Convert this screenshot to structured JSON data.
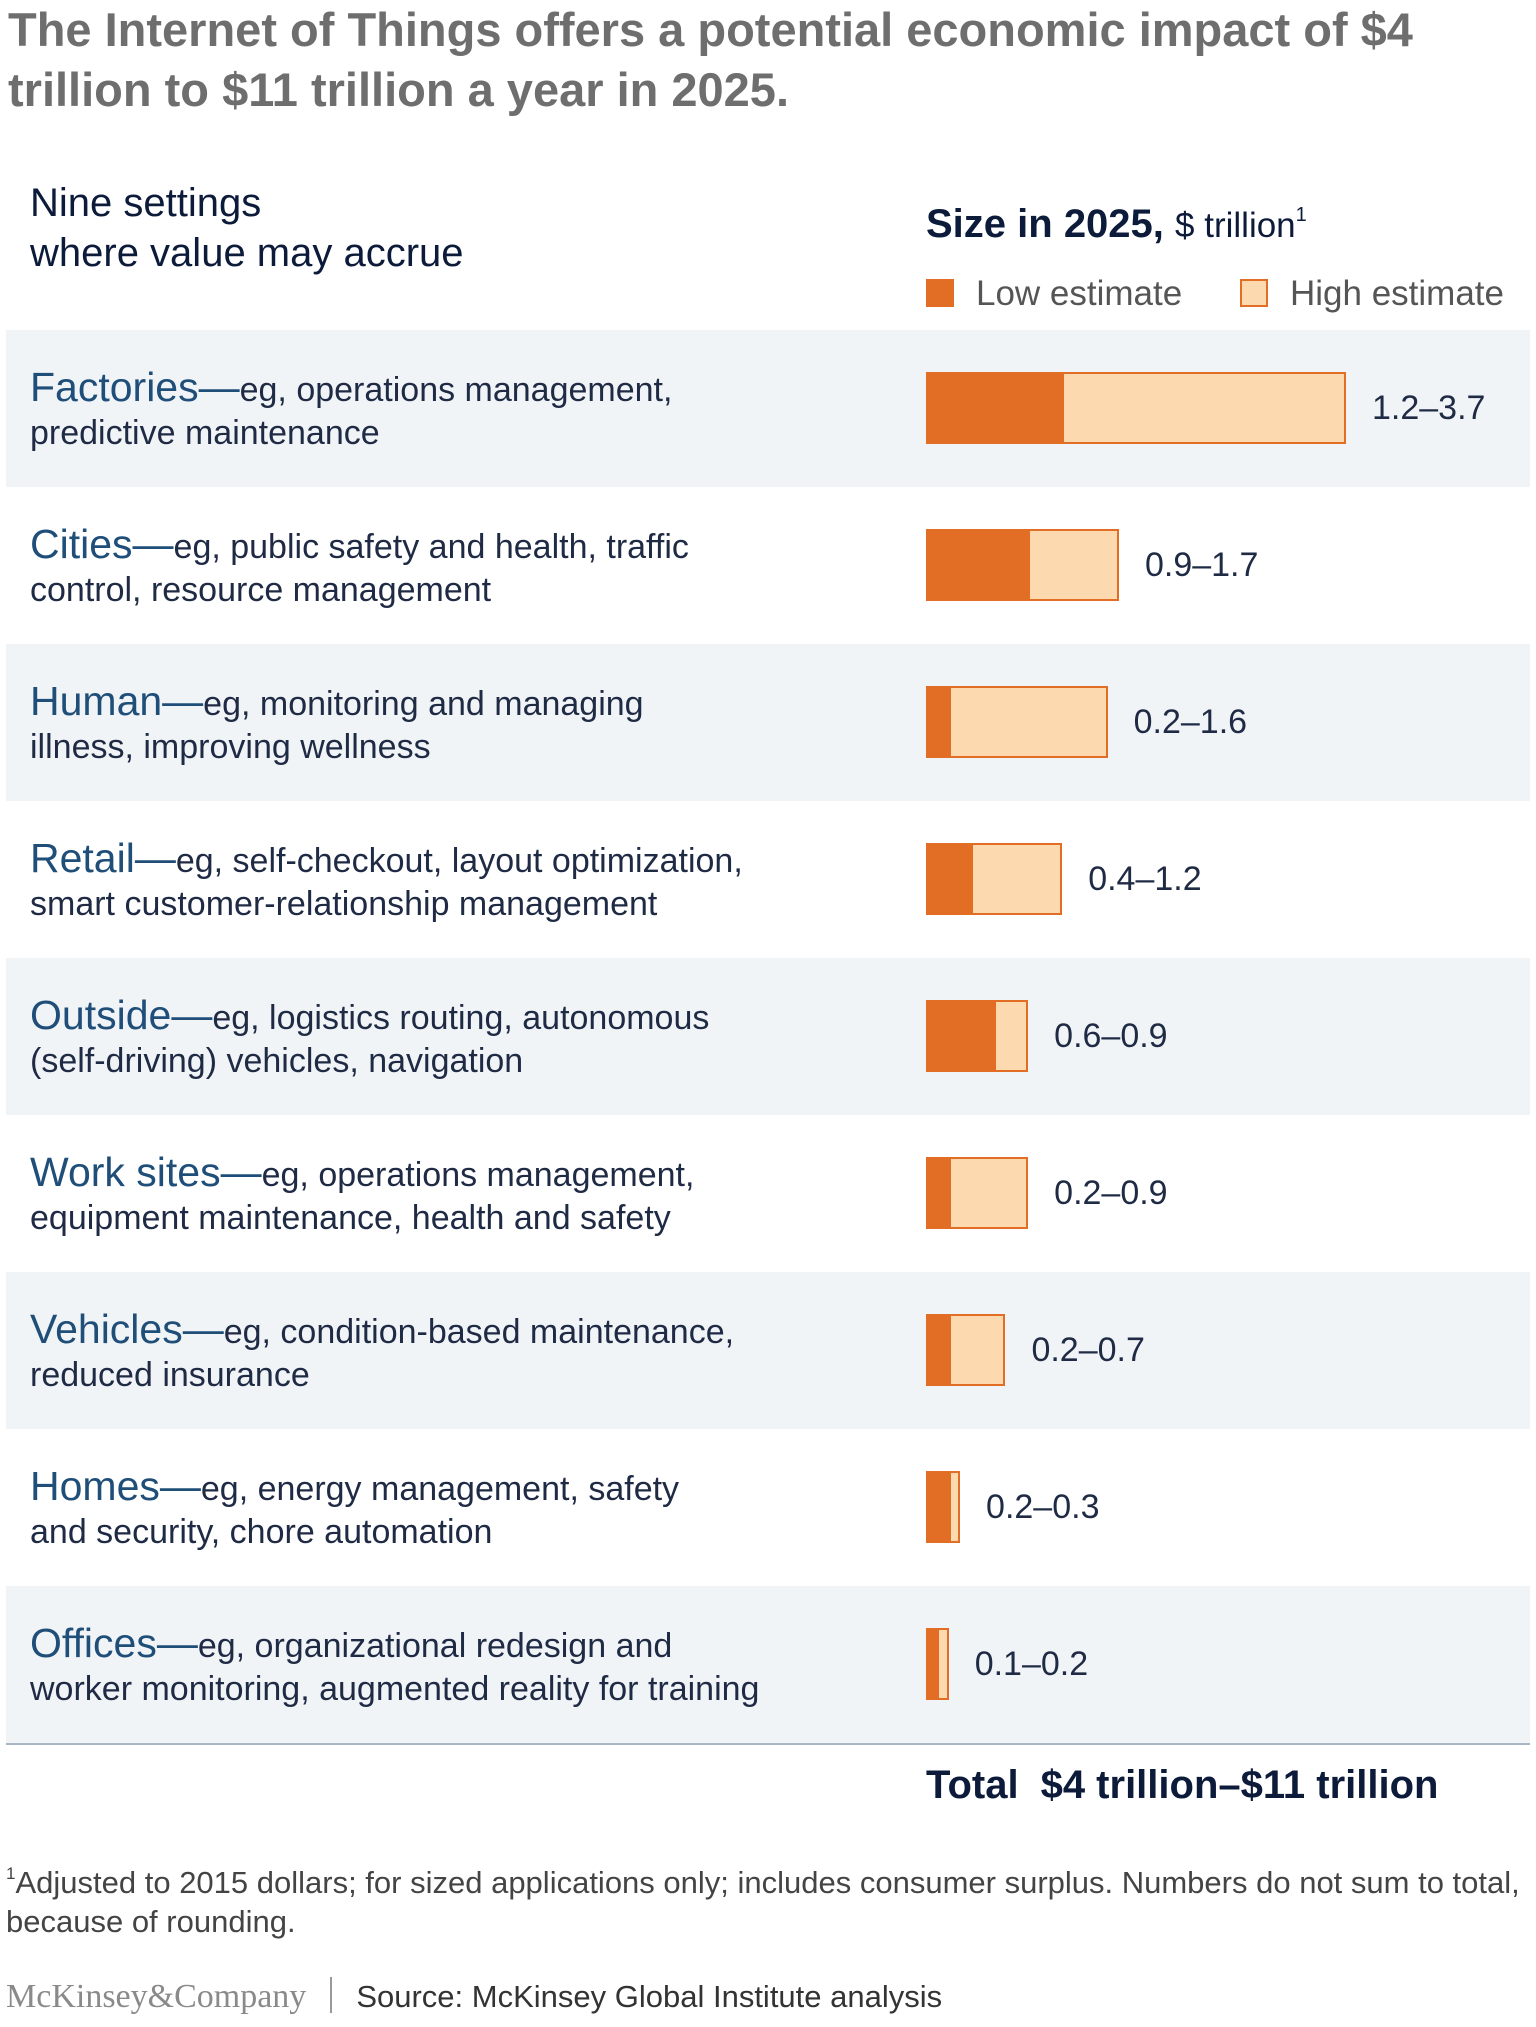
{
  "title": "The Internet of Things offers a potential economic impact of $4 trillion to $11 trillion a year in 2025.",
  "settings_header": {
    "line1": "Nine settings",
    "line2": "where value may accrue"
  },
  "size_header": {
    "strong": "Size in 2025,",
    "unit": "$ trillion",
    "footnote_marker": "1"
  },
  "legend": {
    "low_label": "Low estimate",
    "high_label": "High estimate"
  },
  "colors": {
    "low": "#e26e25",
    "high": "#fdd9b0",
    "shade": "#f1f4f7",
    "setting_text": "#1f4e79"
  },
  "chart_data": {
    "type": "bar",
    "orientation": "horizontal",
    "categories": [
      "Factories",
      "Cities",
      "Human",
      "Retail",
      "Outside",
      "Work sites",
      "Vehicles",
      "Homes",
      "Offices"
    ],
    "series": [
      {
        "name": "Low estimate",
        "values": [
          1.2,
          0.9,
          0.2,
          0.4,
          0.6,
          0.2,
          0.2,
          0.2,
          0.1
        ]
      },
      {
        "name": "High estimate",
        "values": [
          3.7,
          1.7,
          1.6,
          1.2,
          0.9,
          0.9,
          0.7,
          0.3,
          0.2
        ]
      }
    ],
    "xlim": [
      0,
      3.7
    ],
    "grid": false,
    "legend_position": "top-right"
  },
  "rows": [
    {
      "setting": "Factories",
      "dash": "—",
      "desc_line1": "eg, operations management,",
      "desc_line2": "predictive maintenance",
      "value_label": "1.2–3.7"
    },
    {
      "setting": "Cities",
      "dash": "—",
      "desc_line1": "eg, public safety and health, traffic",
      "desc_line2": "control, resource management",
      "value_label": "0.9–1.7"
    },
    {
      "setting": "Human",
      "dash": "—",
      "desc_line1": "eg, monitoring and managing",
      "desc_line2": "illness, improving wellness",
      "value_label": "0.2–1.6"
    },
    {
      "setting": "Retail",
      "dash": "—",
      "desc_line1": "eg, self-checkout, layout optimization,",
      "desc_line2": "smart customer-relationship management",
      "value_label": "0.4–1.2"
    },
    {
      "setting": "Outside",
      "dash": "—",
      "desc_line1": "eg, logistics routing, autonomous",
      "desc_line2": "(self-driving) vehicles, navigation",
      "value_label": "0.6–0.9"
    },
    {
      "setting": "Work sites",
      "dash": "—",
      "desc_line1": "eg, operations management,",
      "desc_line2": "equipment maintenance, health and safety",
      "value_label": "0.2–0.9"
    },
    {
      "setting": "Vehicles",
      "dash": "—",
      "desc_line1": "eg, condition-based maintenance,",
      "desc_line2": "reduced insurance",
      "value_label": "0.2–0.7"
    },
    {
      "setting": "Homes",
      "dash": "—",
      "desc_line1": "eg, energy management, safety",
      "desc_line2": "and security, chore automation",
      "value_label": "0.2–0.3"
    },
    {
      "setting": "Offices",
      "dash": "—",
      "desc_line1": "eg, organizational redesign and",
      "desc_line2": "worker monitoring, augmented reality for training",
      "value_label": "0.1–0.2"
    }
  ],
  "total": {
    "label": "Total",
    "value": "$4 trillion–$11 trillion"
  },
  "footnote": {
    "marker": "1",
    "text": "Adjusted to 2015 dollars; for sized applications only; includes consumer surplus. Numbers do not sum to total, because of rounding."
  },
  "footer": {
    "logo": "McKinsey&Company",
    "source": "Source: McKinsey Global Institute analysis"
  }
}
